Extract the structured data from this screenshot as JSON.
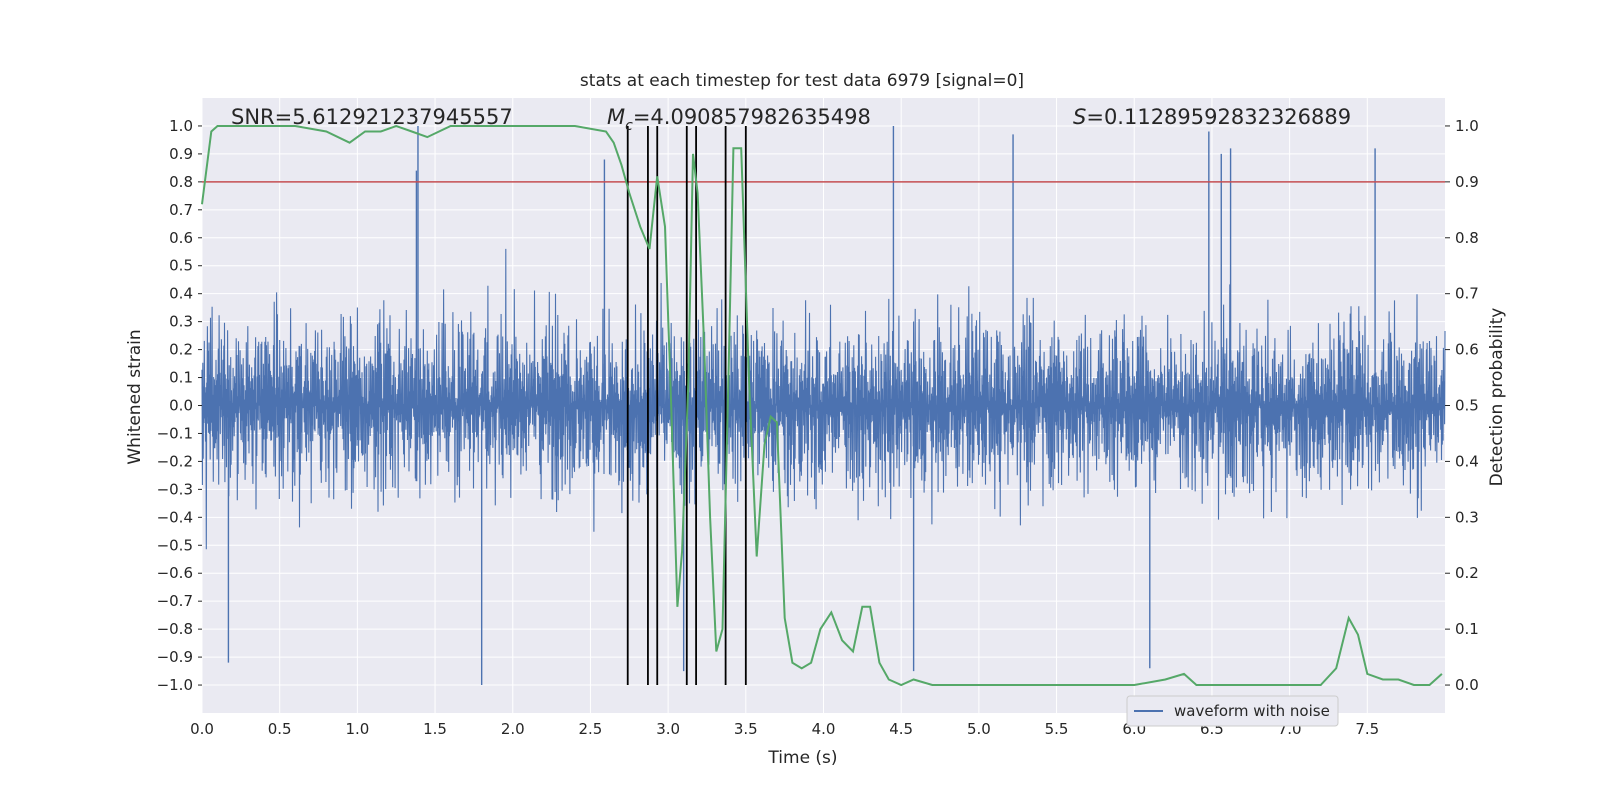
{
  "chart_data": {
    "type": "line",
    "title": "stats at each timestep for test data 6979 [signal=0]",
    "xlabel": "Time (s)",
    "ylabel_left": "Whitened strain",
    "ylabel_right": "Detection probability",
    "xlim": [
      0.0,
      8.0
    ],
    "ylim_left": [
      -1.1,
      1.1
    ],
    "ylim_right": [
      -0.05,
      1.05
    ],
    "x_ticks": [
      "0.0",
      "0.5",
      "1.0",
      "1.5",
      "2.0",
      "2.5",
      "3.0",
      "3.5",
      "4.0",
      "4.5",
      "5.0",
      "5.5",
      "6.0",
      "6.5",
      "7.0",
      "7.5"
    ],
    "y_ticks_left": [
      "1.0",
      "0.9",
      "0.8",
      "0.7",
      "0.6",
      "0.5",
      "0.4",
      "0.3",
      "0.2",
      "0.1",
      "0.0",
      "−0.1",
      "−0.2",
      "−0.3",
      "−0.4",
      "−0.5",
      "−0.6",
      "−0.7",
      "−0.8",
      "−0.9",
      "−1.0"
    ],
    "y_ticks_right": [
      "1.0",
      "0.9",
      "0.8",
      "0.7",
      "0.6",
      "0.5",
      "0.4",
      "0.3",
      "0.2",
      "0.1",
      "0.0"
    ],
    "grid": true,
    "legend_position": "lower-right",
    "annotations": {
      "snr": "SNR=5.612921237945557",
      "mc": "M",
      "mc_sub": "c",
      "mc_value": "=4.090857982635498",
      "s": "S",
      "s_value": "=0.11289592832326889"
    },
    "series": [
      {
        "name": "waveform with noise",
        "axis": "left",
        "color": "#4c72b0",
        "duration": 8.0,
        "noise_envelope_typical": 0.5,
        "spikes": [
          [
            0.17,
            -0.92
          ],
          [
            1.38,
            0.84
          ],
          [
            1.39,
            1.0
          ],
          [
            1.8,
            -1.0
          ],
          [
            2.59,
            0.88
          ],
          [
            3.1,
            -0.95
          ],
          [
            4.45,
            1.0
          ],
          [
            4.58,
            -0.95
          ],
          [
            5.22,
            0.97
          ],
          [
            6.1,
            -0.94
          ],
          [
            6.48,
            0.98
          ],
          [
            6.56,
            0.9
          ],
          [
            6.62,
            0.92
          ],
          [
            7.55,
            0.92
          ]
        ]
      },
      {
        "name": "",
        "axis": "right",
        "color": "#55a868",
        "x": [
          0.0,
          0.06,
          0.1,
          0.2,
          0.4,
          0.6,
          0.8,
          0.95,
          1.05,
          1.15,
          1.25,
          1.35,
          1.45,
          1.6,
          1.8,
          2.0,
          2.2,
          2.4,
          2.6,
          2.65,
          2.7,
          2.75,
          2.82,
          2.88,
          2.93,
          2.98,
          3.02,
          3.06,
          3.09,
          3.13,
          3.16,
          3.19,
          3.23,
          3.27,
          3.31,
          3.35,
          3.39,
          3.42,
          3.47,
          3.52,
          3.57,
          3.62,
          3.66,
          3.7,
          3.75,
          3.8,
          3.86,
          3.92,
          3.98,
          4.05,
          4.12,
          4.19,
          4.25,
          4.3,
          4.36,
          4.42,
          4.5,
          4.58,
          4.7,
          4.9,
          5.2,
          5.6,
          6.0,
          6.2,
          6.32,
          6.4,
          6.6,
          7.0,
          7.2,
          7.3,
          7.38,
          7.44,
          7.5,
          7.6,
          7.7,
          7.8,
          7.9,
          7.98
        ],
        "y": [
          0.86,
          0.99,
          1.0,
          1.0,
          1.0,
          1.0,
          0.99,
          0.97,
          0.99,
          0.99,
          1.0,
          0.99,
          0.98,
          1.0,
          1.0,
          1.0,
          1.0,
          1.0,
          0.99,
          0.97,
          0.93,
          0.88,
          0.82,
          0.78,
          0.91,
          0.82,
          0.5,
          0.14,
          0.24,
          0.54,
          0.95,
          0.88,
          0.62,
          0.3,
          0.06,
          0.1,
          0.57,
          0.96,
          0.96,
          0.55,
          0.23,
          0.43,
          0.48,
          0.47,
          0.12,
          0.04,
          0.03,
          0.04,
          0.1,
          0.13,
          0.08,
          0.06,
          0.14,
          0.14,
          0.04,
          0.01,
          0.0,
          0.01,
          0.0,
          0.0,
          0.0,
          0.0,
          0.0,
          0.01,
          0.02,
          0.0,
          0.0,
          0.0,
          0.0,
          0.03,
          0.12,
          0.09,
          0.02,
          0.01,
          0.01,
          0.0,
          0.0,
          0.02
        ]
      }
    ],
    "threshold_line": {
      "axis": "right",
      "value": 0.9,
      "color": "#c44e52"
    },
    "vertical_markers": {
      "color": "#000000",
      "x": [
        2.74,
        2.87,
        2.93,
        3.12,
        3.18,
        3.37,
        3.5
      ],
      "y_from": -1.0,
      "y_to": 1.0
    },
    "legend": {
      "label": "waveform with noise"
    }
  }
}
